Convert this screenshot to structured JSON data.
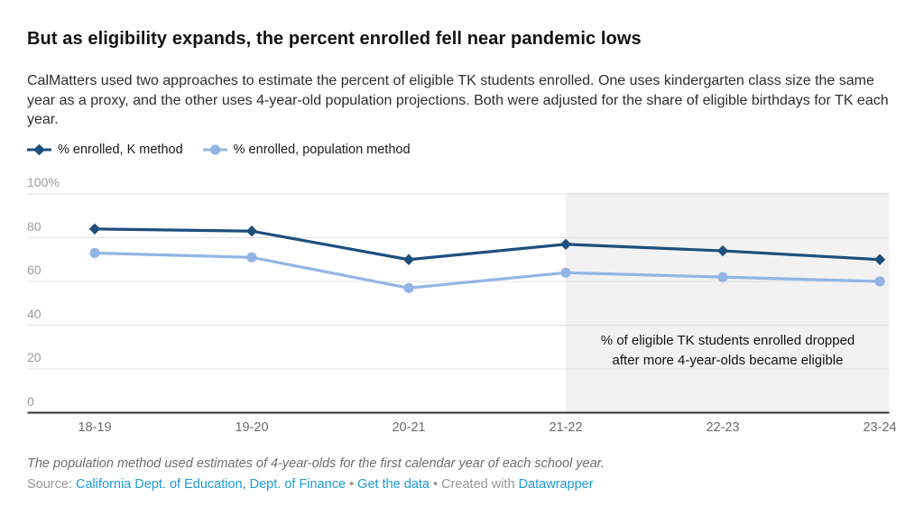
{
  "chart_data": {
    "type": "line",
    "title": "But as eligibility expands, the percent enrolled fell near pandemic lows",
    "description": "CalMatters used two approaches to estimate the percent of eligible TK students enrolled. One uses kindergarten class size the same year as a proxy, and the other uses 4-year-old population projections. Both were adjusted for the share of eligible birthdays for TK each year.",
    "categories": [
      "18-19",
      "19-20",
      "20-21",
      "21-22",
      "22-23",
      "23-24"
    ],
    "series": [
      {
        "name": "% enrolled, K method",
        "marker": "diamond",
        "color": "#1d4f7c",
        "values": [
          84,
          83,
          70,
          77,
          74,
          70
        ]
      },
      {
        "name": "% enrolled, population method",
        "marker": "circle",
        "color": "#92b5e4",
        "values": [
          73,
          71,
          57,
          64,
          62,
          60
        ]
      }
    ],
    "xlabel": "",
    "ylabel": "",
    "ylim": [
      0,
      100
    ],
    "yticks": [
      {
        "value": 100,
        "label": "100%"
      },
      {
        "value": 80,
        "label": "80"
      },
      {
        "value": 60,
        "label": "60"
      },
      {
        "value": 40,
        "label": "40"
      },
      {
        "value": 20,
        "label": "20"
      },
      {
        "value": 0,
        "label": "0"
      }
    ],
    "grid": true,
    "legend_position": "top",
    "highlight_region": {
      "from_index": 3,
      "color": "#f2f2f2",
      "annotation": [
        "% of eligible TK students enrolled dropped",
        "after more 4-year-olds became eligible"
      ]
    }
  },
  "colors": {
    "gridline": "#e0e0e0",
    "axis_line": "#303030",
    "y_tick_text": "#9d9d9d",
    "x_tick_text": "#6b6b6b",
    "link_blue": "#1d9bd8"
  },
  "footer": {
    "note": "The population method used estimates of 4-year-olds for the first calendar year of each school year.",
    "source_label": "Source: ",
    "source_link": "California Dept. of Education, Dept. of Finance",
    "separator1": " • ",
    "get_data_label": "Get the data",
    "separator2": " • ",
    "created_with_label": "Created with ",
    "datawrapper_label": "Datawrapper"
  }
}
